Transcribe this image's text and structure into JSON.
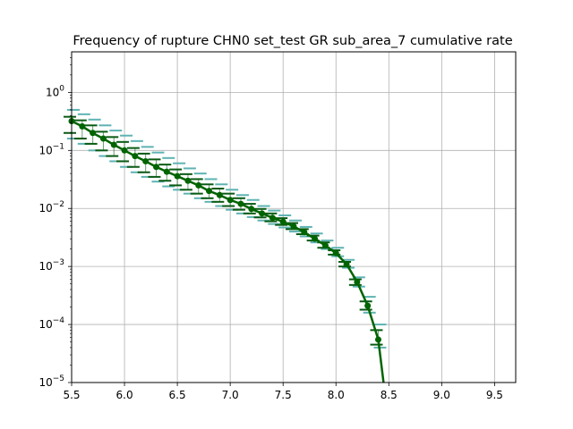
{
  "chart_data": {
    "type": "line",
    "title": "Frequency of rupture CHN0 set_test GR sub_area_7 cumulative rate",
    "xlabel": "",
    "ylabel": "",
    "xlim": [
      5.5,
      9.7
    ],
    "ylim": [
      1e-05,
      5
    ],
    "yscale": "log",
    "grid": true,
    "x_ticks": [
      "5.5",
      "6.0",
      "6.5",
      "7.0",
      "7.5",
      "8.0",
      "8.5",
      "9.0",
      "9.5"
    ],
    "y_ticks": [
      {
        "value": 1e-05,
        "base": "10",
        "exp": "−5"
      },
      {
        "value": 0.0001,
        "base": "10",
        "exp": "−4"
      },
      {
        "value": 0.001,
        "base": "10",
        "exp": "−3"
      },
      {
        "value": 0.01,
        "base": "10",
        "exp": "−2"
      },
      {
        "value": 0.1,
        "base": "10",
        "exp": "−1"
      },
      {
        "value": 1,
        "base": "10",
        "exp": "0"
      }
    ],
    "colors": {
      "main": "#006400",
      "dark_bars": "#0a5a14",
      "light_bars": "#5fb3b3"
    },
    "series": [
      {
        "style": "main-line-with-markers",
        "x": [
          5.5,
          5.6,
          5.7,
          5.8,
          5.9,
          6.0,
          6.1,
          6.2,
          6.3,
          6.4,
          6.5,
          6.6,
          6.7,
          6.8,
          6.9,
          7.0,
          7.1,
          7.2,
          7.3,
          7.4,
          7.5,
          7.6,
          7.7,
          7.8,
          7.9,
          8.0,
          8.1,
          8.2,
          8.3,
          8.4,
          8.45
        ],
        "y": [
          0.32,
          0.26,
          0.2,
          0.16,
          0.125,
          0.1,
          0.08,
          0.065,
          0.052,
          0.043,
          0.036,
          0.03,
          0.025,
          0.02,
          0.017,
          0.014,
          0.012,
          0.0098,
          0.0082,
          0.0069,
          0.0059,
          0.0049,
          0.0039,
          0.003,
          0.0023,
          0.0017,
          0.0011,
          0.00054,
          0.00021,
          5.5e-05,
          1e-05
        ]
      }
    ],
    "error_bars": {
      "x": [
        5.5,
        5.6,
        5.7,
        5.8,
        5.9,
        6.0,
        6.1,
        6.2,
        6.3,
        6.4,
        6.5,
        6.6,
        6.7,
        6.8,
        6.9,
        7.0,
        7.1,
        7.2,
        7.3,
        7.4,
        7.5,
        7.6,
        7.7,
        7.8,
        7.9,
        8.0,
        8.1,
        8.2,
        8.3,
        8.4
      ],
      "dark_low": [
        0.2,
        0.16,
        0.13,
        0.1,
        0.08,
        0.065,
        0.052,
        0.042,
        0.035,
        0.03,
        0.025,
        0.021,
        0.018,
        0.015,
        0.013,
        0.011,
        0.0095,
        0.0082,
        0.007,
        0.006,
        0.0052,
        0.0044,
        0.0036,
        0.0028,
        0.0021,
        0.0016,
        0.001,
        0.00048,
        0.00018,
        4.5e-05
      ],
      "dark_high": [
        0.38,
        0.33,
        0.27,
        0.21,
        0.17,
        0.14,
        0.11,
        0.088,
        0.07,
        0.057,
        0.047,
        0.039,
        0.032,
        0.026,
        0.022,
        0.018,
        0.015,
        0.012,
        0.0098,
        0.0082,
        0.0068,
        0.0056,
        0.0044,
        0.0034,
        0.0026,
        0.0019,
        0.0012,
        0.0006,
        0.00025,
        8e-05
      ],
      "light_low": [
        0.16,
        0.13,
        0.1,
        0.08,
        0.065,
        0.052,
        0.042,
        0.035,
        0.029,
        0.024,
        0.021,
        0.018,
        0.015,
        0.013,
        0.011,
        0.0095,
        0.0082,
        0.0071,
        0.0062,
        0.0054,
        0.0047,
        0.004,
        0.0033,
        0.0026,
        0.002,
        0.0015,
        0.00095,
        0.00045,
        0.00016,
        4e-05
      ],
      "light_high": [
        0.5,
        0.42,
        0.34,
        0.27,
        0.22,
        0.18,
        0.145,
        0.115,
        0.092,
        0.074,
        0.06,
        0.049,
        0.04,
        0.032,
        0.026,
        0.021,
        0.017,
        0.014,
        0.011,
        0.0092,
        0.0076,
        0.0062,
        0.0048,
        0.0037,
        0.0028,
        0.0021,
        0.0013,
        0.00065,
        0.0003,
        0.0001
      ]
    }
  }
}
